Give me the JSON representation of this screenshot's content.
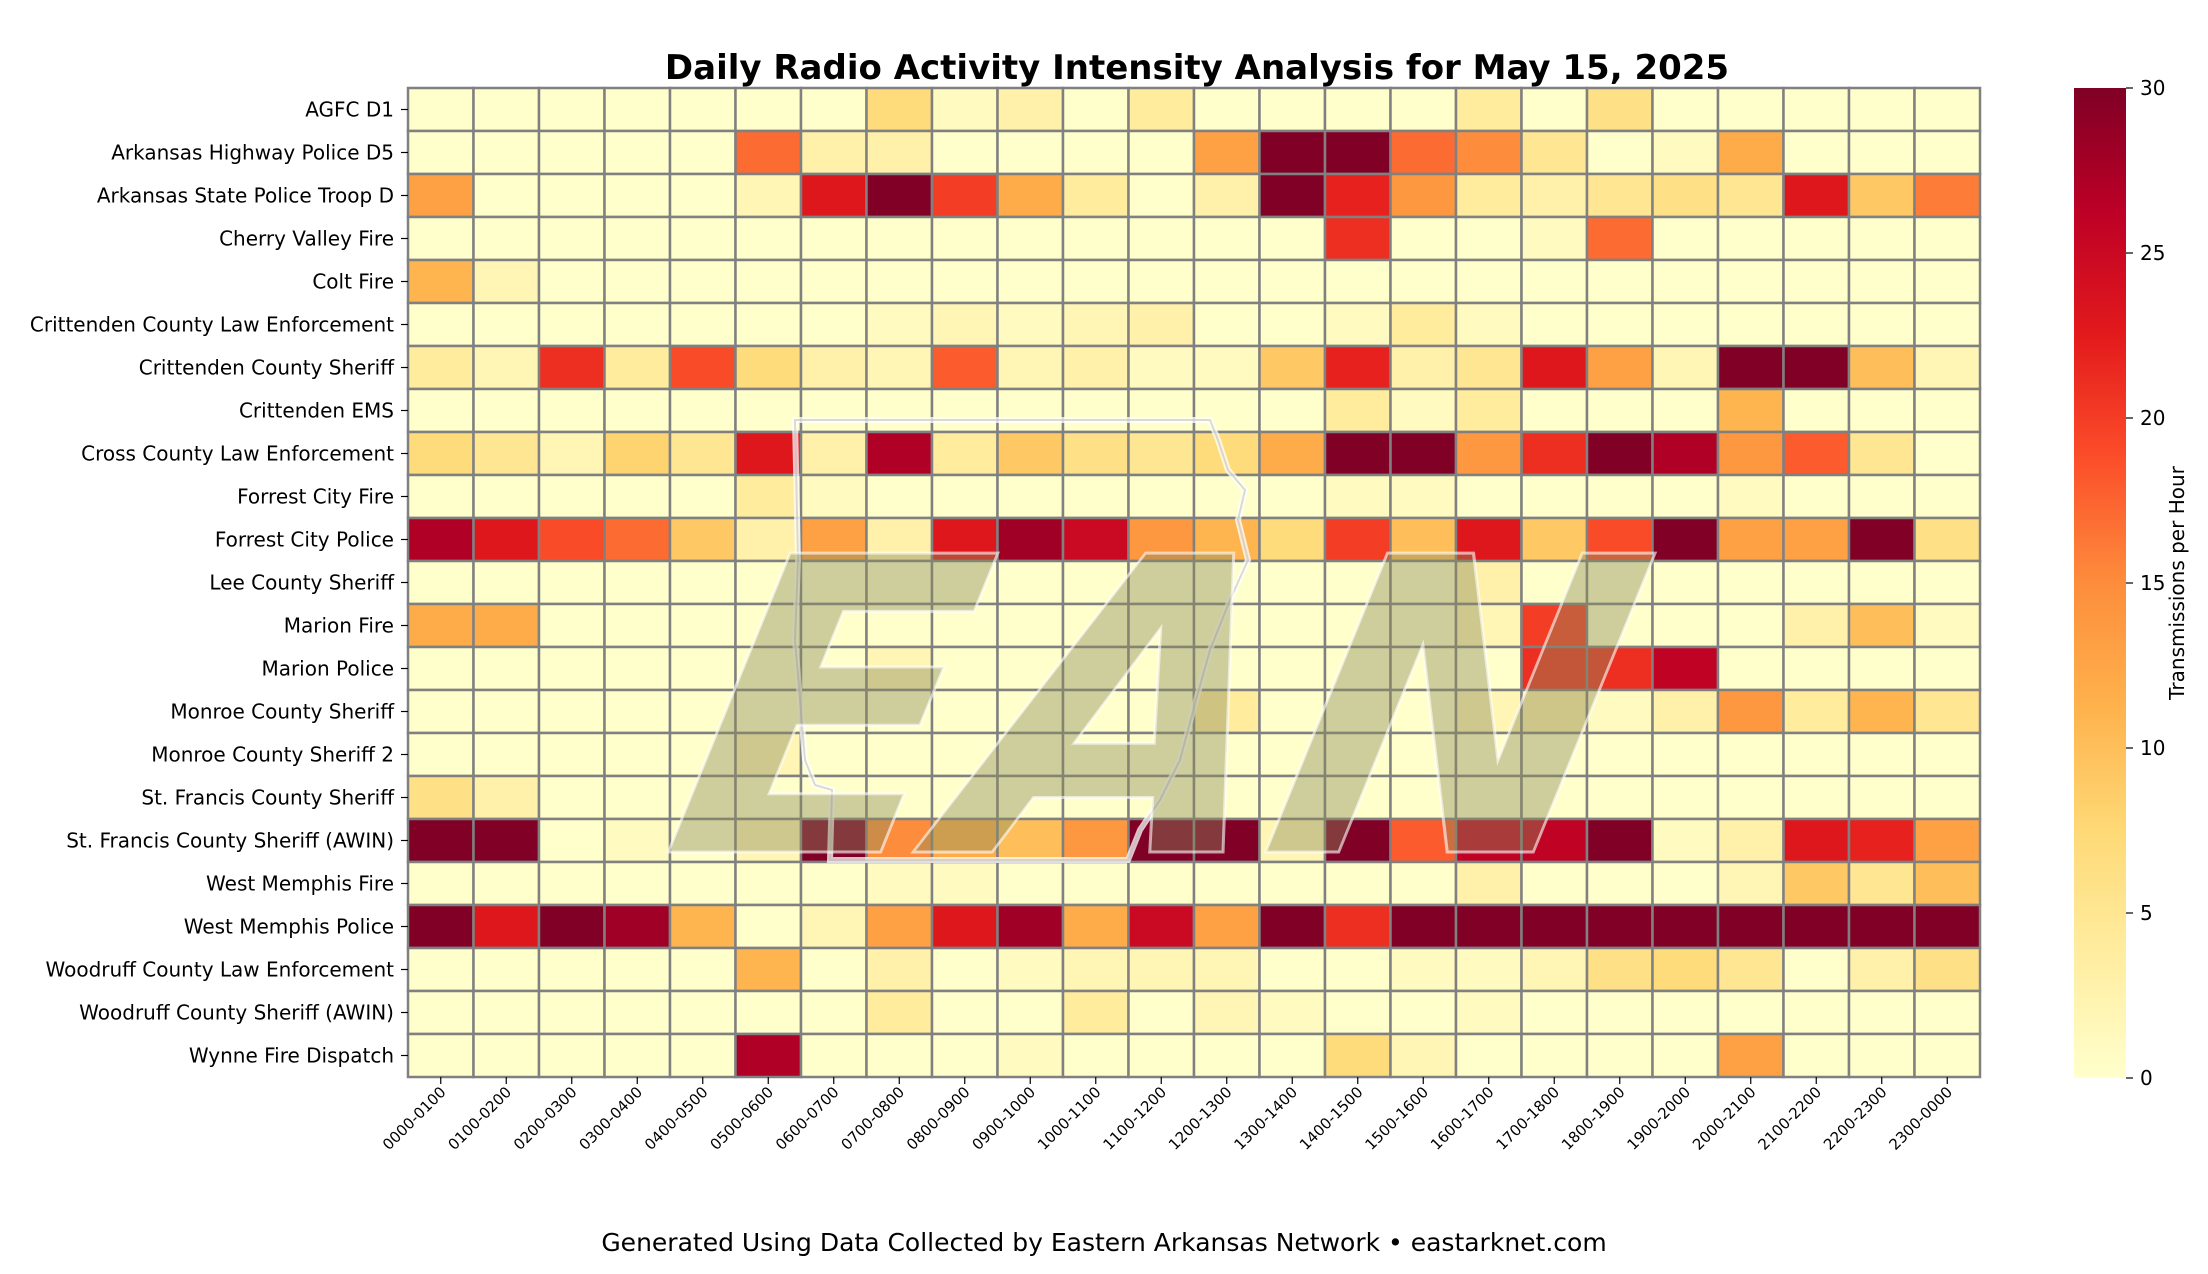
{
  "chart_data": {
    "type": "heatmap",
    "title": "Daily Radio Activity Intensity Analysis for May 15, 2025",
    "xlabel": "",
    "ylabel": "",
    "colorbar_label": "Transmissions per Hour",
    "colorbar_range": [
      0,
      30
    ],
    "colorbar_ticks": [
      "0",
      "5",
      "10",
      "15",
      "20",
      "25",
      "30"
    ],
    "colormap": [
      "#ffffcc",
      "#ffeda0",
      "#fed976",
      "#feb24c",
      "#fd8d3c",
      "#fc4e2a",
      "#e31a1c",
      "#bd0026",
      "#800026"
    ],
    "grid_color": "#808080",
    "x_categories": [
      "0000-0100",
      "0100-0200",
      "0200-0300",
      "0300-0400",
      "0400-0500",
      "0500-0600",
      "0600-0700",
      "0700-0800",
      "0800-0900",
      "0900-1000",
      "1000-1100",
      "1100-1200",
      "1200-1300",
      "1300-1400",
      "1400-1500",
      "1500-1600",
      "1600-1700",
      "1700-1800",
      "1800-1900",
      "1900-2000",
      "2000-2100",
      "2100-2200",
      "2200-2300",
      "2300-0000"
    ],
    "y_categories": [
      "AGFC D1",
      "Arkansas Highway Police D5",
      "Arkansas State Police Troop D",
      "Cherry Valley Fire",
      "Colt Fire",
      "Crittenden County Law Enforcement",
      "Crittenden County Sheriff",
      "Crittenden EMS",
      "Cross County Law Enforcement",
      "Forrest City Fire",
      "Forrest City Police",
      "Lee County Sheriff",
      "Marion Fire",
      "Marion Police",
      "Monroe County Sheriff",
      "Monroe County Sheriff 2",
      "St. Francis County Sheriff",
      "St. Francis County Sheriff (AWIN)",
      "West Memphis Fire",
      "West Memphis Police",
      "Woodruff County Law Enforcement",
      "Woodruff County Sheriff (AWIN)",
      "Wynne Fire Dispatch"
    ],
    "values": [
      [
        0,
        0,
        0,
        0,
        0,
        0,
        0,
        7,
        1,
        3,
        0,
        4,
        0,
        0,
        0,
        0,
        4,
        0,
        6,
        0,
        0,
        0,
        0,
        0
      ],
      [
        0,
        0,
        0,
        0,
        0,
        17,
        3,
        3,
        0,
        0,
        0,
        0,
        13,
        30,
        30,
        17,
        15,
        5,
        0,
        1,
        12,
        0,
        0,
        0
      ],
      [
        13,
        0,
        0,
        0,
        0,
        2,
        23,
        30,
        20,
        12,
        4,
        0,
        3,
        30,
        22,
        14,
        4,
        3,
        5,
        6,
        5,
        23,
        9,
        16
      ],
      [
        0,
        0,
        0,
        0,
        0,
        0,
        0,
        0,
        0,
        0,
        0,
        0,
        0,
        0,
        21,
        0,
        0,
        1,
        17,
        0,
        0,
        0,
        0,
        0
      ],
      [
        11,
        2,
        0,
        0,
        0,
        0,
        0,
        0,
        0,
        0,
        0,
        0,
        0,
        0,
        0,
        0,
        0,
        0,
        0,
        0,
        0,
        0,
        0,
        0
      ],
      [
        0,
        0,
        0,
        0,
        0,
        0,
        0,
        1,
        2,
        1,
        2,
        3,
        0,
        0,
        1,
        4,
        1,
        0,
        0,
        0,
        0,
        0,
        0,
        0
      ],
      [
        4,
        2,
        21,
        4,
        19,
        7,
        3,
        2,
        18,
        2,
        3,
        1,
        1,
        9,
        22,
        3,
        5,
        23,
        13,
        2,
        30,
        30,
        10,
        2
      ],
      [
        0,
        0,
        0,
        0,
        0,
        0,
        0,
        0,
        0,
        0,
        0,
        0,
        0,
        0,
        4,
        1,
        4,
        0,
        0,
        0,
        11,
        0,
        0,
        0
      ],
      [
        7,
        5,
        2,
        8,
        5,
        23,
        3,
        27,
        4,
        9,
        6,
        5,
        7,
        12,
        30,
        30,
        14,
        21,
        30,
        27,
        14,
        18,
        5,
        0
      ],
      [
        0,
        0,
        0,
        0,
        0,
        4,
        1,
        0,
        0,
        0,
        0,
        0,
        0,
        0,
        1,
        1,
        0,
        0,
        0,
        0,
        1,
        0,
        0,
        0
      ],
      [
        27,
        23,
        19,
        17,
        9,
        3,
        13,
        3,
        23,
        28,
        25,
        14,
        11,
        7,
        20,
        10,
        23,
        9,
        19,
        30,
        13,
        13,
        30,
        6
      ],
      [
        0,
        0,
        0,
        0,
        0,
        0,
        0,
        0,
        0,
        0,
        0,
        0,
        0,
        0,
        0,
        0,
        3,
        0,
        0,
        0,
        0,
        0,
        0,
        0
      ],
      [
        12,
        12,
        0,
        0,
        0,
        0,
        0,
        0,
        0,
        0,
        0,
        0,
        0,
        0,
        0,
        0,
        2,
        20,
        0,
        0,
        0,
        3,
        10,
        1
      ],
      [
        0,
        0,
        0,
        0,
        0,
        0,
        0,
        2,
        0,
        0,
        0,
        0,
        0,
        0,
        0,
        0,
        0,
        21,
        21,
        26,
        0,
        0,
        0,
        0
      ],
      [
        0,
        0,
        0,
        0,
        0,
        0,
        0,
        0,
        0,
        0,
        0,
        0,
        4,
        0,
        0,
        0,
        2,
        3,
        1,
        3,
        14,
        4,
        11,
        5
      ],
      [
        0,
        0,
        0,
        0,
        0,
        2,
        0,
        0,
        0,
        0,
        0,
        0,
        0,
        0,
        0,
        0,
        0,
        0,
        0,
        0,
        0,
        0,
        0,
        0
      ],
      [
        6,
        3,
        0,
        0,
        0,
        0,
        0,
        0,
        0,
        0,
        0,
        0,
        0,
        0,
        0,
        0,
        0,
        0,
        0,
        0,
        0,
        0,
        0,
        0
      ],
      [
        30,
        30,
        0,
        1,
        0,
        2,
        30,
        15,
        12,
        10,
        14,
        30,
        30,
        2,
        30,
        18,
        26,
        26,
        30,
        1,
        3,
        23,
        22,
        13
      ],
      [
        0,
        0,
        0,
        0,
        0,
        0,
        0,
        1,
        1,
        0,
        0,
        0,
        0,
        0,
        0,
        0,
        3,
        0,
        0,
        0,
        2,
        9,
        5,
        10
      ],
      [
        30,
        23,
        30,
        28,
        11,
        0,
        2,
        13,
        23,
        28,
        12,
        25,
        13,
        30,
        21,
        30,
        30,
        30,
        30,
        30,
        30,
        30,
        30,
        30
      ],
      [
        0,
        0,
        0,
        0,
        0,
        11,
        0,
        3,
        0,
        1,
        2,
        2,
        2,
        0,
        0,
        1,
        1,
        2,
        6,
        7,
        5,
        0,
        3,
        6
      ],
      [
        0,
        0,
        0,
        0,
        0,
        0,
        0,
        4,
        0,
        0,
        4,
        0,
        2,
        1,
        0,
        0,
        1,
        0,
        0,
        0,
        0,
        0,
        0,
        0
      ],
      [
        0,
        0,
        0,
        0,
        0,
        27,
        0,
        0,
        0,
        1,
        0,
        0,
        0,
        0,
        7,
        2,
        0,
        0,
        0,
        0,
        13,
        0,
        0,
        0
      ]
    ]
  },
  "watermark": {
    "text": "EAN"
  },
  "footer": "Generated Using Data Collected by Eastern Arkansas Network • eastarknet.com"
}
